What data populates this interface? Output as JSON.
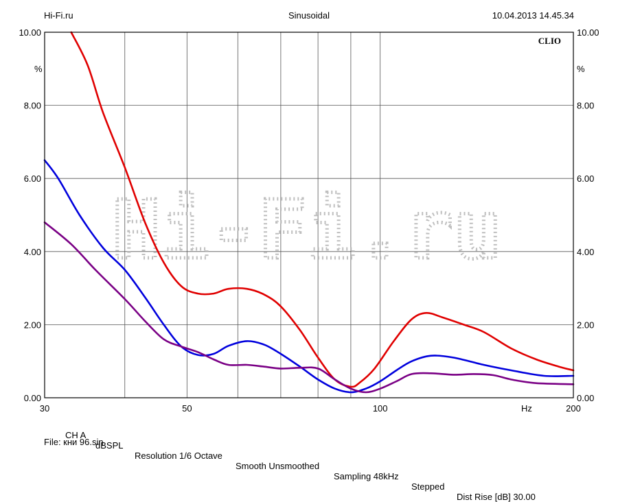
{
  "header": {
    "left": "Hi-Fi.ru",
    "center": "Sinusoidal",
    "right": "10.04.2013 14.45.34"
  },
  "brand": "CLIO",
  "watermark": "Hi-Fi.ru",
  "footer": {
    "channel": "CH A",
    "units": "dBSPL",
    "resolution": "Resolution 1/6 Octave",
    "smoothing": "Smooth Unsmoothed",
    "sampling": "Sampling 48kHz",
    "mode": "Stepped",
    "dist_rise": "Dist Rise [dB] 30.00",
    "file": "File: кни 96.sin"
  },
  "chart_data": {
    "type": "line",
    "title": "Sinusoidal",
    "xlabel": "Hz",
    "ylabel": "%",
    "x_scale": "log",
    "xlim": [
      30,
      200
    ],
    "ylim": [
      0,
      10
    ],
    "x_tick_labels": [
      {
        "value": 30,
        "label": "30"
      },
      {
        "value": 50,
        "label": "50"
      },
      {
        "value": 100,
        "label": "100"
      },
      {
        "value": 200,
        "label": "200"
      }
    ],
    "x_gridlines": [
      30,
      40,
      50,
      60,
      70,
      80,
      90,
      100,
      200
    ],
    "y_tick_labels": [
      {
        "value": 0,
        "label": "0.00"
      },
      {
        "value": 2,
        "label": "2.00"
      },
      {
        "value": 4,
        "label": "4.00"
      },
      {
        "value": 6,
        "label": "6.00"
      },
      {
        "value": 8,
        "label": "8.00"
      },
      {
        "value": 10,
        "label": "10.00"
      }
    ],
    "grid": true,
    "series": [
      {
        "color": "#e00000",
        "points": [
          [
            33,
            10.0
          ],
          [
            35,
            9.1
          ],
          [
            37,
            7.8
          ],
          [
            40,
            6.3
          ],
          [
            43,
            4.8
          ],
          [
            46,
            3.7
          ],
          [
            49,
            3.05
          ],
          [
            52,
            2.85
          ],
          [
            55,
            2.85
          ],
          [
            58,
            2.98
          ],
          [
            62,
            2.98
          ],
          [
            66,
            2.82
          ],
          [
            70,
            2.5
          ],
          [
            75,
            1.85
          ],
          [
            80,
            1.1
          ],
          [
            85,
            0.5
          ],
          [
            90,
            0.3
          ],
          [
            93,
            0.42
          ],
          [
            98,
            0.8
          ],
          [
            105,
            1.55
          ],
          [
            112,
            2.15
          ],
          [
            118,
            2.32
          ],
          [
            125,
            2.2
          ],
          [
            135,
            2.0
          ],
          [
            145,
            1.8
          ],
          [
            160,
            1.35
          ],
          [
            175,
            1.05
          ],
          [
            190,
            0.85
          ],
          [
            200,
            0.75
          ]
        ]
      },
      {
        "color": "#0000dd",
        "points": [
          [
            30,
            6.5
          ],
          [
            31.5,
            6.0
          ],
          [
            34,
            5.0
          ],
          [
            37,
            4.1
          ],
          [
            40,
            3.5
          ],
          [
            43,
            2.75
          ],
          [
            46,
            2.0
          ],
          [
            49,
            1.4
          ],
          [
            52,
            1.17
          ],
          [
            55,
            1.2
          ],
          [
            58,
            1.42
          ],
          [
            62,
            1.55
          ],
          [
            66,
            1.45
          ],
          [
            70,
            1.2
          ],
          [
            75,
            0.85
          ],
          [
            80,
            0.5
          ],
          [
            85,
            0.25
          ],
          [
            90,
            0.15
          ],
          [
            95,
            0.25
          ],
          [
            100,
            0.45
          ],
          [
            106,
            0.75
          ],
          [
            112,
            1.0
          ],
          [
            120,
            1.15
          ],
          [
            130,
            1.1
          ],
          [
            145,
            0.9
          ],
          [
            160,
            0.75
          ],
          [
            180,
            0.6
          ],
          [
            200,
            0.6
          ]
        ]
      },
      {
        "color": "#7a0085",
        "points": [
          [
            30,
            4.8
          ],
          [
            33,
            4.2
          ],
          [
            36,
            3.5
          ],
          [
            40,
            2.7
          ],
          [
            43,
            2.1
          ],
          [
            46,
            1.6
          ],
          [
            49,
            1.4
          ],
          [
            52,
            1.25
          ],
          [
            55,
            1.05
          ],
          [
            58,
            0.9
          ],
          [
            62,
            0.9
          ],
          [
            66,
            0.85
          ],
          [
            70,
            0.8
          ],
          [
            75,
            0.82
          ],
          [
            80,
            0.8
          ],
          [
            85,
            0.5
          ],
          [
            90,
            0.25
          ],
          [
            95,
            0.15
          ],
          [
            100,
            0.25
          ],
          [
            106,
            0.45
          ],
          [
            112,
            0.65
          ],
          [
            120,
            0.67
          ],
          [
            130,
            0.63
          ],
          [
            140,
            0.65
          ],
          [
            150,
            0.62
          ],
          [
            160,
            0.5
          ],
          [
            175,
            0.4
          ],
          [
            200,
            0.37
          ]
        ]
      }
    ]
  }
}
